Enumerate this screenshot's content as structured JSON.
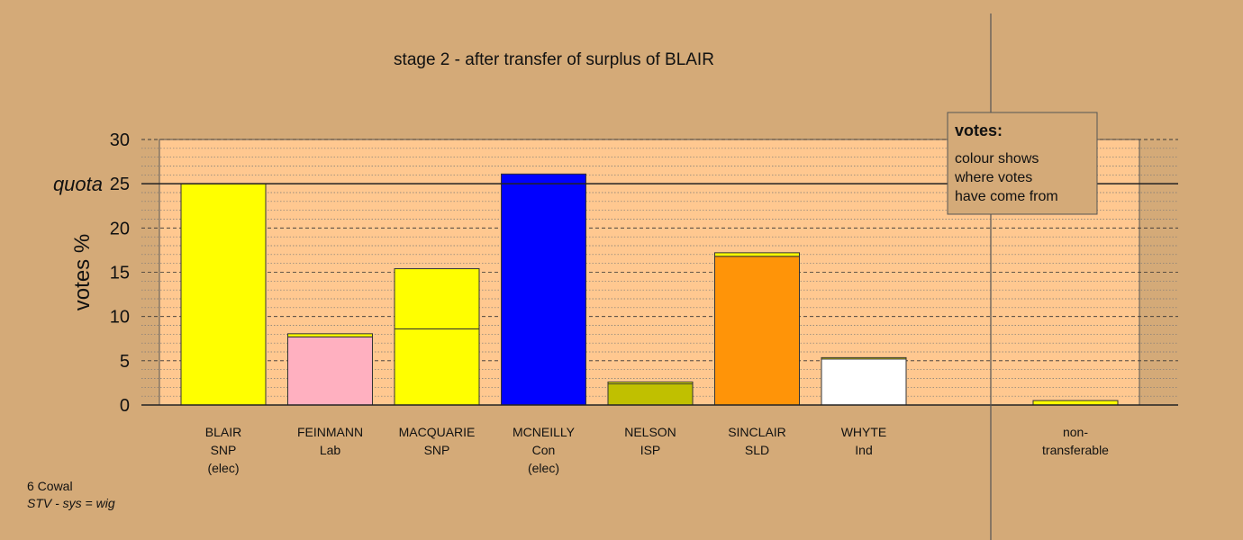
{
  "chart_data": {
    "type": "bar",
    "title": "stage 2 - after transfer of surplus of BLAIR",
    "ylabel": "votes %",
    "ylim": [
      0,
      30
    ],
    "yticks": [
      0,
      5,
      10,
      15,
      20,
      25,
      30
    ],
    "quota": {
      "label": "quota",
      "value": 25
    },
    "candidates": [
      {
        "name": "BLAIR",
        "party": "SNP",
        "status": "(elec)",
        "segments": [
          {
            "value": 25.0,
            "color": "#ffff00"
          }
        ]
      },
      {
        "name": "FEINMANN",
        "party": "Lab",
        "status": "",
        "segments": [
          {
            "value": 7.7,
            "color": "#ffb0c0"
          },
          {
            "value": 0.35,
            "color": "#ffff00"
          }
        ]
      },
      {
        "name": "MACQUARIE",
        "party": "SNP",
        "status": "",
        "segments": [
          {
            "value": 8.6,
            "color": "#ffff00"
          },
          {
            "value": 6.8,
            "color": "#ffff00"
          }
        ]
      },
      {
        "name": "MCNEILLY",
        "party": "Con",
        "status": "(elec)",
        "segments": [
          {
            "value": 26.1,
            "color": "#0000ff"
          }
        ]
      },
      {
        "name": "NELSON",
        "party": "ISP",
        "status": "",
        "segments": [
          {
            "value": 2.4,
            "color": "#c0c000"
          },
          {
            "value": 0.2,
            "color": "#ffff00"
          }
        ]
      },
      {
        "name": "SINCLAIR",
        "party": "SLD",
        "status": "",
        "segments": [
          {
            "value": 16.8,
            "color": "#ff9408"
          },
          {
            "value": 0.4,
            "color": "#ffff00"
          }
        ]
      },
      {
        "name": "WHYTE",
        "party": "Ind",
        "status": "",
        "segments": [
          {
            "value": 5.2,
            "color": "#ffffff"
          },
          {
            "value": 0.15,
            "color": "#ffff00"
          }
        ]
      }
    ],
    "nontransferable": {
      "label_line1": "non-",
      "label_line2": "transferable",
      "value": 0.5,
      "color": "#ffff00"
    },
    "legend": {
      "position": "top-right",
      "title": "votes:",
      "lines": [
        "colour shows",
        "where votes",
        "have come from"
      ]
    },
    "colors": {
      "background": "#d4aa78",
      "plot_area": "#ffc890"
    }
  },
  "footer": {
    "constituency": "6 Cowal",
    "system": "STV - sys = wig"
  }
}
